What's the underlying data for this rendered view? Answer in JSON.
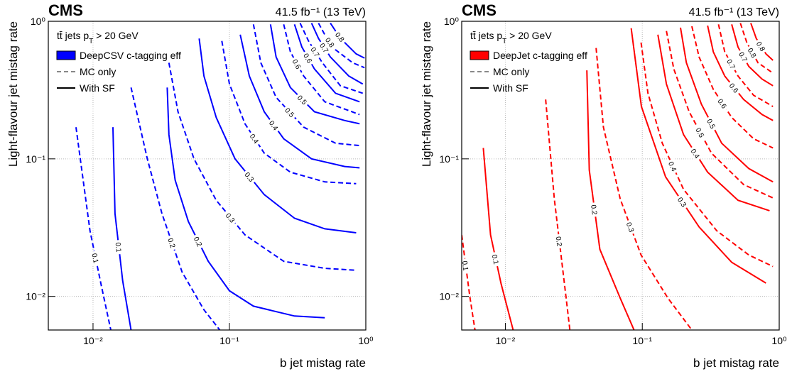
{
  "chart_data": [
    {
      "type": "contour",
      "header": "CMS",
      "lumi": "41.5 fb⁻¹ (13 TeV)",
      "selection": [
        "tt̄ jets p",
        "T",
        " > 20 GeV"
      ],
      "xlabel": "b jet mistag rate",
      "ylabel": "Light-flavour jet mistag rate",
      "log": true,
      "grid": true,
      "color": "#0000ff",
      "xlim": [
        0.0047,
        1
      ],
      "ylim": [
        0.0057,
        1
      ],
      "xticks": [
        {
          "value": 0.01,
          "label": "10⁻²"
        },
        {
          "value": 0.1,
          "label": "10⁻¹"
        },
        {
          "value": 1,
          "label": "10⁰"
        }
      ],
      "yticks": [
        {
          "value": 0.01,
          "label": "10⁻²"
        },
        {
          "value": 0.1,
          "label": "10⁻¹"
        },
        {
          "value": 1,
          "label": "10⁰"
        }
      ],
      "legend": [
        {
          "label": "DeepCSV c-tagging eff",
          "style": "box"
        },
        {
          "label": "MC only",
          "style": "dashed",
          "color": "#888888"
        },
        {
          "label": "With SF",
          "style": "solid",
          "color": "#000000"
        }
      ],
      "contours": [
        {
          "label": "0.1",
          "style": "dashed",
          "x": [
            0.0075,
            0.0095,
            0.0115,
            0.0135
          ],
          "y": [
            0.17,
            0.03,
            0.012,
            0.0057
          ]
        },
        {
          "label": "0.1",
          "style": "solid",
          "x": [
            0.014,
            0.0145,
            0.0165,
            0.019
          ],
          "y": [
            0.17,
            0.04,
            0.013,
            0.0057
          ]
        },
        {
          "label": "0.2",
          "style": "dashed",
          "x": [
            0.019,
            0.025,
            0.032,
            0.045,
            0.065,
            0.085
          ],
          "y": [
            0.33,
            0.1,
            0.04,
            0.015,
            0.008,
            0.0057
          ]
        },
        {
          "label": "0.2",
          "style": "solid",
          "x": [
            0.035,
            0.036,
            0.04,
            0.05,
            0.07,
            0.1,
            0.15,
            0.3,
            0.5
          ],
          "y": [
            0.33,
            0.15,
            0.07,
            0.035,
            0.018,
            0.011,
            0.0085,
            0.0072,
            0.007
          ]
        },
        {
          "label": "0.3",
          "style": "dashed",
          "x": [
            0.036,
            0.042,
            0.055,
            0.08,
            0.13,
            0.25,
            0.5,
            0.85
          ],
          "y": [
            0.5,
            0.22,
            0.1,
            0.05,
            0.028,
            0.018,
            0.016,
            0.0155
          ]
        },
        {
          "label": "0.3",
          "style": "solid",
          "x": [
            0.06,
            0.065,
            0.08,
            0.11,
            0.18,
            0.3,
            0.5,
            0.85
          ],
          "y": [
            0.75,
            0.4,
            0.2,
            0.1,
            0.055,
            0.037,
            0.031,
            0.029
          ]
        },
        {
          "label": "0.4",
          "style": "dashed",
          "x": [
            0.088,
            0.1,
            0.13,
            0.18,
            0.28,
            0.5,
            0.85
          ],
          "y": [
            0.72,
            0.35,
            0.18,
            0.11,
            0.08,
            0.068,
            0.066
          ]
        },
        {
          "label": "0.4",
          "style": "solid",
          "x": [
            0.12,
            0.14,
            0.18,
            0.25,
            0.4,
            0.7,
            0.9
          ],
          "y": [
            0.8,
            0.4,
            0.22,
            0.14,
            0.1,
            0.088,
            0.086
          ]
        },
        {
          "label": "0.5",
          "style": "dashed",
          "x": [
            0.15,
            0.17,
            0.22,
            0.35,
            0.6,
            0.9
          ],
          "y": [
            0.95,
            0.5,
            0.28,
            0.17,
            0.13,
            0.125
          ]
        },
        {
          "label": "0.5",
          "style": "solid",
          "x": [
            0.2,
            0.22,
            0.28,
            0.42,
            0.7,
            0.9
          ],
          "y": [
            0.95,
            0.55,
            0.33,
            0.22,
            0.19,
            0.18
          ]
        },
        {
          "label": "0.6",
          "style": "dashed",
          "x": [
            0.25,
            0.28,
            0.35,
            0.5,
            0.9
          ],
          "y": [
            0.95,
            0.6,
            0.4,
            0.26,
            0.21
          ]
        },
        {
          "label": "0.6",
          "style": "solid",
          "x": [
            0.3,
            0.34,
            0.42,
            0.6,
            0.9
          ],
          "y": [
            0.95,
            0.65,
            0.45,
            0.3,
            0.26
          ]
        },
        {
          "label": "0.7",
          "style": "dashed",
          "x": [
            0.33,
            0.38,
            0.48,
            0.65,
            0.95
          ],
          "y": [
            0.97,
            0.72,
            0.5,
            0.34,
            0.3
          ]
        },
        {
          "label": "0.7",
          "style": "solid",
          "x": [
            0.4,
            0.45,
            0.55,
            0.75,
            0.95
          ],
          "y": [
            0.97,
            0.75,
            0.55,
            0.4,
            0.35
          ]
        },
        {
          "label": "0.8",
          "style": "dashed",
          "x": [
            0.45,
            0.5,
            0.6,
            0.8,
            0.98
          ],
          "y": [
            0.97,
            0.8,
            0.62,
            0.5,
            0.46
          ]
        },
        {
          "label": "0.8",
          "style": "solid",
          "x": [
            0.55,
            0.6,
            0.7,
            0.85,
            0.98
          ],
          "y": [
            0.97,
            0.85,
            0.7,
            0.58,
            0.54
          ]
        }
      ]
    },
    {
      "type": "contour",
      "header": "CMS",
      "lumi": "41.5 fb⁻¹ (13 TeV)",
      "selection": [
        "tt̄ jets p",
        "T",
        " > 20 GeV"
      ],
      "xlabel": "b jet mistag rate",
      "ylabel": "Light-flavour jet mistag rate",
      "log": true,
      "grid": true,
      "color": "#ff0000",
      "xlim": [
        0.0048,
        1
      ],
      "ylim": [
        0.0057,
        1
      ],
      "xticks": [
        {
          "value": 0.01,
          "label": "10⁻²"
        },
        {
          "value": 0.1,
          "label": "10⁻¹"
        },
        {
          "value": 1,
          "label": "10⁰"
        }
      ],
      "yticks": [
        {
          "value": 0.01,
          "label": "10⁻²"
        },
        {
          "value": 0.1,
          "label": "10⁻¹"
        },
        {
          "value": 1,
          "label": "10⁰"
        }
      ],
      "legend": [
        {
          "label": "DeepJet c-tagging eff",
          "style": "box"
        },
        {
          "label": "MC only",
          "style": "dashed",
          "color": "#888888"
        },
        {
          "label": "With SF",
          "style": "solid",
          "color": "#000000"
        }
      ],
      "contours": [
        {
          "label": "0.1",
          "style": "dashed",
          "x": [
            0.0048,
            0.0055,
            0.006
          ],
          "y": [
            0.028,
            0.01,
            0.0057
          ]
        },
        {
          "label": "0.1",
          "style": "solid",
          "x": [
            0.0069,
            0.0078,
            0.0093,
            0.0114
          ],
          "y": [
            0.12,
            0.028,
            0.0124,
            0.0057
          ]
        },
        {
          "label": "0.2",
          "style": "dashed",
          "x": [
            0.0197,
            0.0228,
            0.027,
            0.0296
          ],
          "y": [
            0.27,
            0.051,
            0.0124,
            0.0057
          ]
        },
        {
          "label": "0.2",
          "style": "solid",
          "x": [
            0.0394,
            0.041,
            0.049,
            0.069,
            0.087
          ],
          "y": [
            0.44,
            0.083,
            0.022,
            0.0097,
            0.0057
          ]
        },
        {
          "label": "0.3",
          "style": "dashed",
          "x": [
            0.046,
            0.052,
            0.069,
            0.098,
            0.154,
            0.23
          ],
          "y": [
            0.64,
            0.17,
            0.051,
            0.02,
            0.0097,
            0.0057
          ]
        },
        {
          "label": "0.3",
          "style": "solid",
          "x": [
            0.083,
            0.0985,
            0.148,
            0.26,
            0.45,
            0.8
          ],
          "y": [
            0.89,
            0.24,
            0.074,
            0.032,
            0.0177,
            0.0125
          ]
        },
        {
          "label": "0.4",
          "style": "dashed",
          "x": [
            0.098,
            0.11,
            0.14,
            0.2,
            0.35,
            0.6,
            0.9
          ],
          "y": [
            0.7,
            0.3,
            0.13,
            0.06,
            0.03,
            0.02,
            0.0165
          ]
        },
        {
          "label": "0.4",
          "style": "solid",
          "x": [
            0.13,
            0.15,
            0.2,
            0.3,
            0.5,
            0.85
          ],
          "y": [
            0.8,
            0.35,
            0.15,
            0.08,
            0.05,
            0.042
          ]
        },
        {
          "label": "0.5",
          "style": "dashed",
          "x": [
            0.15,
            0.17,
            0.22,
            0.32,
            0.55,
            0.9
          ],
          "y": [
            0.85,
            0.45,
            0.22,
            0.11,
            0.065,
            0.052
          ]
        },
        {
          "label": "0.5",
          "style": "solid",
          "x": [
            0.19,
            0.21,
            0.27,
            0.38,
            0.6,
            0.9
          ],
          "y": [
            0.9,
            0.5,
            0.25,
            0.13,
            0.085,
            0.068
          ]
        },
        {
          "label": "0.6",
          "style": "dashed",
          "x": [
            0.23,
            0.26,
            0.33,
            0.45,
            0.65,
            0.9
          ],
          "y": [
            0.92,
            0.55,
            0.32,
            0.2,
            0.14,
            0.12
          ]
        },
        {
          "label": "0.6",
          "style": "solid",
          "x": [
            0.3,
            0.33,
            0.4,
            0.55,
            0.75,
            0.9
          ],
          "y": [
            0.93,
            0.6,
            0.4,
            0.27,
            0.21,
            0.19
          ]
        },
        {
          "label": "0.7",
          "style": "dashed",
          "x": [
            0.36,
            0.4,
            0.5,
            0.65,
            0.9
          ],
          "y": [
            0.95,
            0.6,
            0.4,
            0.29,
            0.24
          ]
        },
        {
          "label": "0.7",
          "style": "solid",
          "x": [
            0.45,
            0.5,
            0.6,
            0.75,
            0.9
          ],
          "y": [
            0.95,
            0.65,
            0.47,
            0.38,
            0.34
          ]
        },
        {
          "label": "0.8",
          "style": "dashed",
          "x": [
            0.52,
            0.58,
            0.7,
            0.9
          ],
          "y": [
            0.97,
            0.7,
            0.5,
            0.42
          ]
        },
        {
          "label": "0.8",
          "style": "solid",
          "x": [
            0.62,
            0.68,
            0.8,
            0.9
          ],
          "y": [
            0.97,
            0.75,
            0.58,
            0.52
          ]
        }
      ]
    }
  ]
}
